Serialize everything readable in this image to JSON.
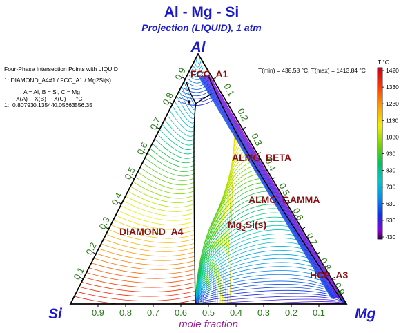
{
  "header": {
    "title": "Al - Mg - Si",
    "subtitle": "Projection (LIQUID), 1 atm"
  },
  "vertices": {
    "top": "Al",
    "left": "Si",
    "right": "Mg"
  },
  "bottom_axis_label": "mole fraction",
  "temperature_range": "T(min) = 438.58 °C, T(max) = 1413.84 °C",
  "info_panel": {
    "title": "Four-Phase Intersection Points with LIQUID",
    "point_line": "1:   DIAMOND_A4#1 / FCC_A1 / Mg2Si(s)",
    "assignment": "A = Al,  B = Si,  C = Mg",
    "col_xa": "X(A)",
    "col_xb": "X(B)",
    "col_xc": "X(C)",
    "col_t": "°C",
    "row_index": "1:",
    "row_xa": "0.80793",
    "row_xb": "0.13544",
    "row_xc": "0.05663",
    "row_t": "556.35"
  },
  "phases": {
    "fcc": "FCC_A1",
    "almg_beta": "ALMG_BETA",
    "almg_gamma": "ALMG_GAMMA",
    "mg2si_base": "Mg",
    "mg2si_sub": "2",
    "mg2si_tail": "Si(s)",
    "diamond": "DIAMOND_A4",
    "hcp": "HCP_A3"
  },
  "left_ticks": [
    "0.1",
    "0.2",
    "0.3",
    "0.4",
    "0.5",
    "0.6",
    "0.7",
    "0.8",
    "0.9"
  ],
  "right_ticks": [
    "0.1",
    "0.2",
    "0.3",
    "0.4",
    "0.5",
    "0.6",
    "0.7",
    "0.8",
    "0.9"
  ],
  "bottom_ticks": [
    "0.9",
    "0.8",
    "0.7",
    "0.6",
    "0.5",
    "0.4",
    "0.3",
    "0.2",
    "0.1"
  ],
  "colorbar": {
    "title": "T °C",
    "labels": [
      "1420",
      "1330",
      "1230",
      "1130",
      "1030",
      "930",
      "830",
      "730",
      "630",
      "530",
      "430"
    ],
    "min": 430,
    "max": 1420
  },
  "invariant_point": {
    "x_al": 0.80793,
    "x_si": 0.13544,
    "x_mg": 0.05663
  }
}
